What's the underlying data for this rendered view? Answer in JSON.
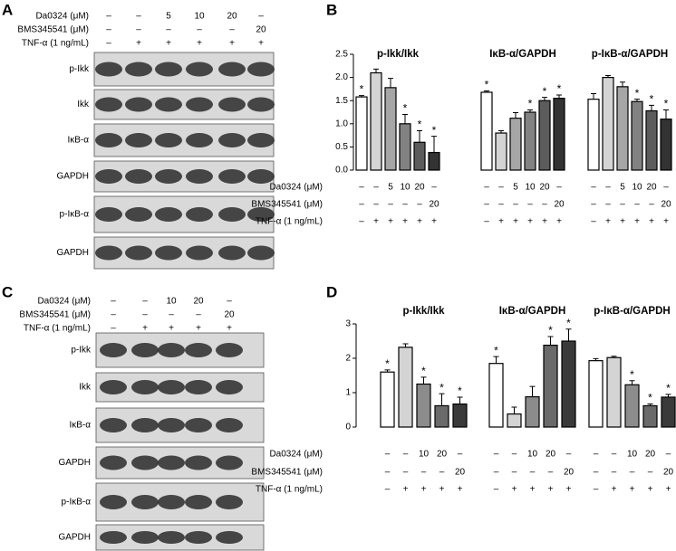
{
  "blot_panels": [
    {
      "label": "A",
      "conditions": [
        {
          "name": "Da0324 (μM)",
          "values": [
            "–",
            "–",
            "5",
            "10",
            "20",
            "–"
          ]
        },
        {
          "name": "BMS345541 (μM)",
          "values": [
            "–",
            "–",
            "–",
            "–",
            "–",
            "20"
          ]
        },
        {
          "name": "TNF-α (1 ng/mL)",
          "values": [
            "–",
            "+",
            "+",
            "+",
            "+",
            "+"
          ]
        }
      ],
      "blots": [
        "p-Ikk",
        "Ikk",
        "IκB-α",
        "GAPDH",
        "p-IκB-α",
        "GAPDH"
      ]
    },
    {
      "label": "C",
      "conditions": [
        {
          "name": "Da0324 (μM)",
          "values": [
            "–",
            "–",
            "10",
            "20",
            "–"
          ]
        },
        {
          "name": "BMS345541 (μM)",
          "values": [
            "–",
            "–",
            "–",
            "–",
            "20"
          ]
        },
        {
          "name": "TNF-α (1 ng/mL)",
          "values": [
            "–",
            "+",
            "+",
            "+",
            "+"
          ]
        }
      ],
      "blots": [
        "p-Ikk",
        "Ikk",
        "IκB-α",
        "GAPDH",
        "p-IκB-α",
        "GAPDH"
      ]
    }
  ],
  "chart_data": [
    {
      "type": "bar",
      "panel_label": "B",
      "ylim": [
        0,
        2.5
      ],
      "yticks": [
        {
          "value": 0,
          "label": "0.0"
        },
        0.5,
        {
          "value": 1,
          "label": "1.0"
        },
        1.5,
        {
          "value": 2,
          "label": "2.0"
        },
        2.5
      ],
      "colors": [
        "#ffffff",
        "#d4d4d4",
        "#a6a6a6",
        "#828282",
        "#5c5c5c",
        "#333333"
      ],
      "groups": [
        {
          "title": "p-Ikk/Ikk",
          "values": [
            1.58,
            2.1,
            1.78,
            1.0,
            0.6,
            0.38
          ],
          "errors": [
            0.03,
            0.08,
            0.2,
            0.2,
            0.25,
            0.35
          ],
          "significance": [
            "*",
            null,
            null,
            "*",
            "*",
            "*"
          ]
        },
        {
          "title": "IκB-α/GAPDH",
          "values": [
            1.68,
            0.8,
            1.12,
            1.25,
            1.5,
            1.55
          ],
          "errors": [
            0.03,
            0.05,
            0.12,
            0.05,
            0.07,
            0.07
          ],
          "significance": [
            "*",
            null,
            null,
            "*",
            "*",
            "*"
          ]
        },
        {
          "title": "p-IκB-α/GAPDH",
          "values": [
            1.53,
            2.0,
            1.8,
            1.48,
            1.28,
            1.1
          ],
          "errors": [
            0.12,
            0.04,
            0.1,
            0.05,
            0.12,
            0.2
          ],
          "significance": [
            null,
            null,
            null,
            "*",
            "*",
            "*"
          ]
        }
      ],
      "conditions": [
        {
          "name": "Da0324 (μM)",
          "values": [
            "–",
            "–",
            "5",
            "10",
            "20",
            "–"
          ]
        },
        {
          "name": "BMS345541 (μM)",
          "values": [
            "–",
            "–",
            "–",
            "–",
            "–",
            "20"
          ]
        },
        {
          "name": "TNF-α (1 ng/mL)",
          "values": [
            "–",
            "+",
            "+",
            "+",
            "+",
            "+"
          ]
        }
      ]
    },
    {
      "type": "bar",
      "panel_label": "D",
      "ylim": [
        0,
        3
      ],
      "yticks": [
        0,
        1,
        2,
        3
      ],
      "colors": [
        "#ffffff",
        "#d4d4d4",
        "#8c8c8c",
        "#6a6a6a",
        "#3a3a3a"
      ],
      "groups": [
        {
          "title": "p-Ikk/Ikk",
          "values": [
            1.6,
            2.32,
            1.25,
            0.62,
            0.67
          ],
          "errors": [
            0.06,
            0.1,
            0.2,
            0.35,
            0.2
          ],
          "significance": [
            "*",
            null,
            "*",
            "*",
            "*"
          ]
        },
        {
          "title": "IκB-α/GAPDH",
          "values": [
            1.85,
            0.38,
            0.88,
            2.38,
            2.5
          ],
          "errors": [
            0.2,
            0.2,
            0.3,
            0.25,
            0.35
          ],
          "significance": [
            "*",
            null,
            null,
            "*",
            "*"
          ]
        },
        {
          "title": "p-IκB-α/GAPDH",
          "values": [
            1.93,
            2.02,
            1.23,
            0.62,
            0.87
          ],
          "errors": [
            0.06,
            0.04,
            0.12,
            0.05,
            0.08
          ],
          "significance": [
            null,
            null,
            "*",
            "*",
            "*"
          ]
        }
      ],
      "conditions": [
        {
          "name": "Da0324 (μM)",
          "values": [
            "–",
            "–",
            "10",
            "20",
            "–"
          ]
        },
        {
          "name": "BMS345541 (μM)",
          "values": [
            "–",
            "–",
            "–",
            "–",
            "20"
          ]
        },
        {
          "name": "TNF-α (1 ng/mL)",
          "values": [
            "–",
            "+",
            "+",
            "+",
            "+"
          ]
        }
      ]
    }
  ]
}
